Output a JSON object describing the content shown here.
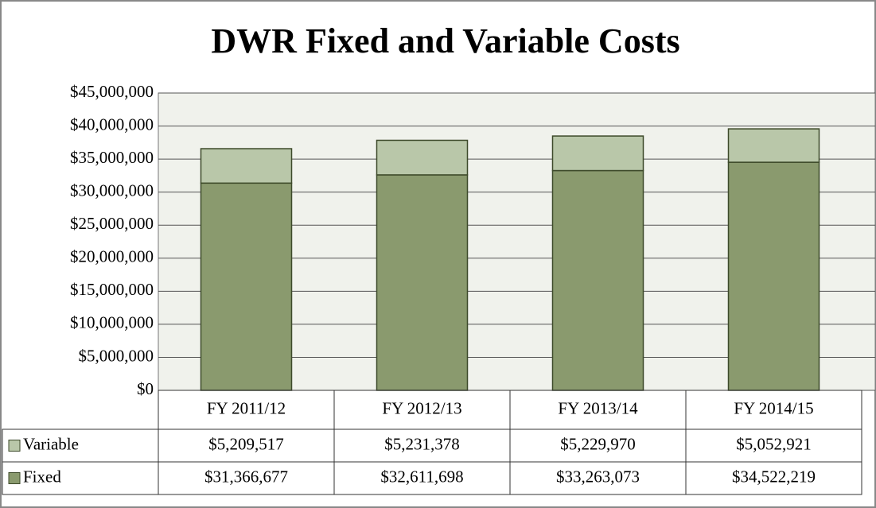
{
  "chart_data": {
    "type": "stacked_bar",
    "title": "DWR Fixed and Variable Costs",
    "categories": [
      "FY 2011/12",
      "FY 2012/13",
      "FY 2013/14",
      "FY 2014/15"
    ],
    "series": [
      {
        "name": "Fixed",
        "color": "#8a9a6e",
        "values": [
          31366677,
          32611698,
          33263073,
          34522219
        ],
        "value_labels": [
          "$31,366,677",
          "$32,611,698",
          "$33,263,073",
          "$34,522,219"
        ]
      },
      {
        "name": "Variable",
        "color": "#b9c7a9",
        "values": [
          5209517,
          5231378,
          5229970,
          5052921
        ],
        "value_labels": [
          "$5,209,517",
          "$5,231,378",
          "$5,229,970",
          "$5,052,921"
        ]
      }
    ],
    "ylim": [
      0,
      45000000
    ],
    "yticks": [
      {
        "value": 0,
        "label": "$0"
      },
      {
        "value": 5000000,
        "label": "$5,000,000"
      },
      {
        "value": 10000000,
        "label": "$10,000,000"
      },
      {
        "value": 15000000,
        "label": "$15,000,000"
      },
      {
        "value": 20000000,
        "label": "$20,000,000"
      },
      {
        "value": 25000000,
        "label": "$25,000,000"
      },
      {
        "value": 30000000,
        "label": "$30,000,000"
      },
      {
        "value": 35000000,
        "label": "$35,000,000"
      },
      {
        "value": 40000000,
        "label": "$40,000,000"
      },
      {
        "value": 45000000,
        "label": "$45,000,000"
      }
    ],
    "grid": true
  }
}
